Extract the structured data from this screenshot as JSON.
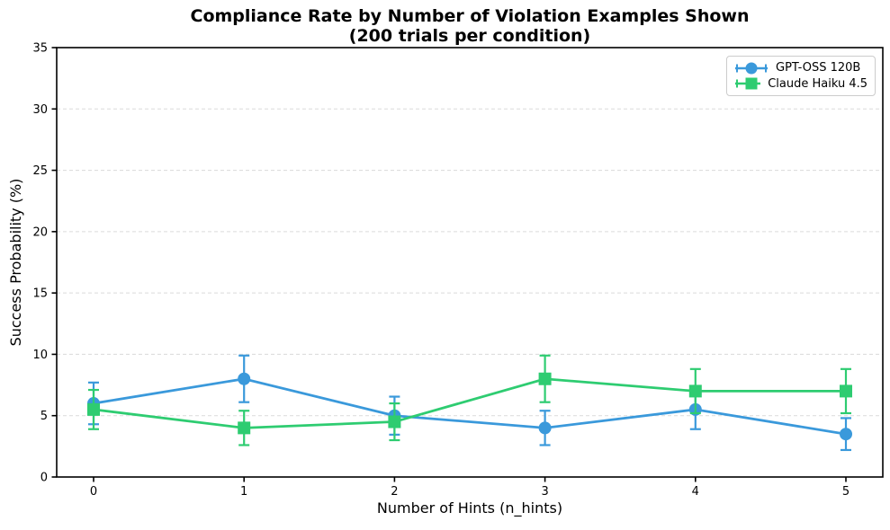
{
  "chart_data": {
    "type": "line",
    "title": "Compliance Rate by Number of Violation Examples Shown",
    "subtitle": "(200 trials per condition)",
    "xlabel": "Number of Hints (n_hints)",
    "ylabel": "Success Probability (%)",
    "x": [
      0,
      1,
      2,
      3,
      4,
      5
    ],
    "xticks": [
      "0",
      "1",
      "2",
      "3",
      "4",
      "5"
    ],
    "yticks": [
      "0",
      "5",
      "10",
      "15",
      "20",
      "25",
      "30",
      "35"
    ],
    "ylim": [
      0,
      35
    ],
    "grid": "horizontal-dashed",
    "legend_position": "upper-right",
    "series": [
      {
        "name": "GPT-OSS 120B",
        "marker": "circle",
        "color": "#3a99db",
        "values": [
          6.0,
          8.0,
          5.0,
          4.0,
          5.5,
          3.5
        ],
        "errors": [
          1.7,
          1.9,
          1.55,
          1.4,
          1.6,
          1.3
        ]
      },
      {
        "name": "Claude Haiku 4.5",
        "marker": "square",
        "color": "#2ecc71",
        "values": [
          5.5,
          4.0,
          4.5,
          8.0,
          7.0,
          7.0
        ],
        "errors": [
          1.6,
          1.4,
          1.5,
          1.9,
          1.8,
          1.8
        ]
      }
    ],
    "style": {
      "grid_color": "#dadada",
      "spine_color": "#000000",
      "text_color": "#000000"
    }
  }
}
